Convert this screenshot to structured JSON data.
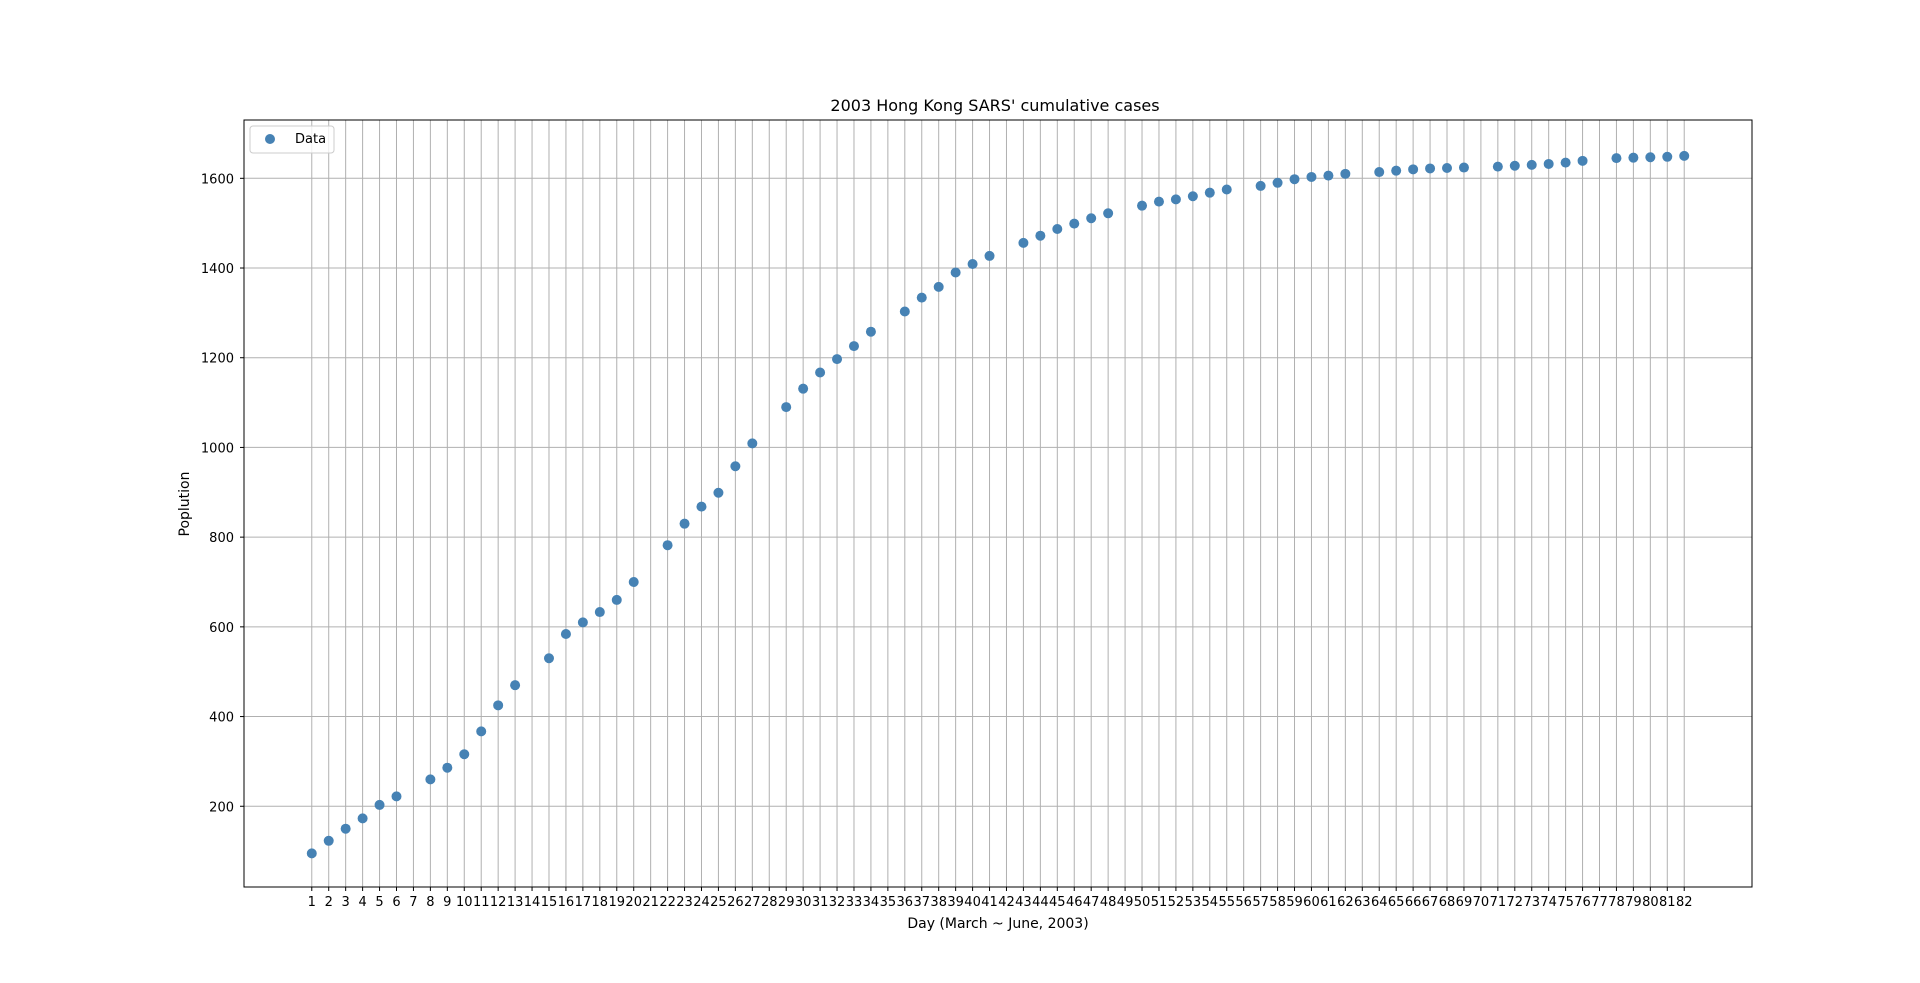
{
  "chart_data": {
    "type": "scatter",
    "title": "2003 Hong Kong SARS' cumulative cases",
    "xlabel": "Day (March ~ June, 2003)",
    "ylabel": "Poplution",
    "x_ticks": [
      1,
      2,
      3,
      4,
      5,
      6,
      7,
      8,
      9,
      10,
      11,
      12,
      13,
      14,
      15,
      16,
      17,
      18,
      19,
      20,
      21,
      22,
      23,
      24,
      25,
      26,
      27,
      28,
      29,
      30,
      31,
      32,
      33,
      34,
      35,
      36,
      37,
      38,
      39,
      40,
      41,
      42,
      43,
      44,
      45,
      46,
      47,
      48,
      49,
      50,
      51,
      52,
      53,
      54,
      55,
      56,
      57,
      58,
      59,
      60,
      61,
      62,
      63,
      64,
      65,
      66,
      67,
      68,
      69,
      70,
      71,
      72,
      73,
      74,
      75,
      76,
      77,
      78,
      79,
      80,
      81,
      82
    ],
    "y_ticks": [
      200,
      400,
      600,
      800,
      1000,
      1200,
      1400,
      1600
    ],
    "xlim": [
      -3,
      86
    ],
    "ylim": [
      20,
      1730
    ],
    "grid": true,
    "legend_position": "top-left",
    "series": [
      {
        "name": "Data",
        "color": "#4682b4",
        "points": [
          [
            1,
            95
          ],
          [
            2,
            123
          ],
          [
            3,
            150
          ],
          [
            4,
            173
          ],
          [
            5,
            203
          ],
          [
            6,
            222
          ],
          [
            8,
            260
          ],
          [
            9,
            286
          ],
          [
            10,
            316
          ],
          [
            11,
            367
          ],
          [
            12,
            425
          ],
          [
            13,
            470
          ],
          [
            15,
            530
          ],
          [
            16,
            584
          ],
          [
            17,
            610
          ],
          [
            18,
            633
          ],
          [
            19,
            660
          ],
          [
            20,
            700
          ],
          [
            22,
            782
          ],
          [
            23,
            830
          ],
          [
            24,
            868
          ],
          [
            25,
            899
          ],
          [
            26,
            958
          ],
          [
            27,
            1009
          ],
          [
            29,
            1090
          ],
          [
            30,
            1131
          ],
          [
            31,
            1167
          ],
          [
            32,
            1197
          ],
          [
            33,
            1226
          ],
          [
            34,
            1258
          ],
          [
            36,
            1303
          ],
          [
            37,
            1334
          ],
          [
            38,
            1358
          ],
          [
            39,
            1390
          ],
          [
            40,
            1409
          ],
          [
            41,
            1427
          ],
          [
            43,
            1456
          ],
          [
            44,
            1472
          ],
          [
            45,
            1487
          ],
          [
            46,
            1499
          ],
          [
            47,
            1511
          ],
          [
            48,
            1522
          ],
          [
            50,
            1539
          ],
          [
            51,
            1548
          ],
          [
            52,
            1553
          ],
          [
            53,
            1560
          ],
          [
            54,
            1568
          ],
          [
            55,
            1575
          ],
          [
            57,
            1583
          ],
          [
            58,
            1590
          ],
          [
            59,
            1598
          ],
          [
            60,
            1603
          ],
          [
            61,
            1606
          ],
          [
            62,
            1610
          ],
          [
            64,
            1614
          ],
          [
            65,
            1617
          ],
          [
            66,
            1620
          ],
          [
            67,
            1622
          ],
          [
            68,
            1623
          ],
          [
            69,
            1624
          ],
          [
            71,
            1626
          ],
          [
            72,
            1628
          ],
          [
            73,
            1630
          ],
          [
            74,
            1632
          ],
          [
            75,
            1635
          ],
          [
            76,
            1639
          ],
          [
            78,
            1645
          ],
          [
            79,
            1646
          ],
          [
            80,
            1647
          ],
          [
            81,
            1648
          ],
          [
            82,
            1650
          ]
        ]
      }
    ]
  }
}
